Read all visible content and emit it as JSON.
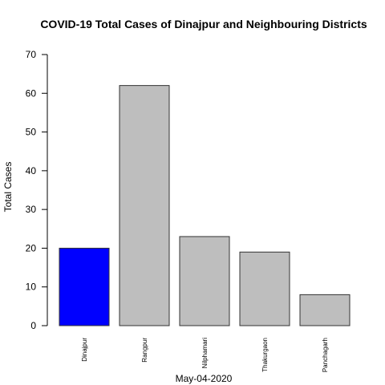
{
  "chart_data": {
    "type": "bar",
    "title": "COVID-19 Total Cases of Dinajpur and Neighbouring Districts",
    "xlabel": "May-04-2020",
    "ylabel": "Total Cases",
    "categories": [
      "Dinajpur",
      "Rangpur",
      "Nilphamari",
      "Thakurgaon",
      "Panchagarh"
    ],
    "values": [
      20,
      62,
      23,
      19,
      8
    ],
    "colors": [
      "#0000ff",
      "#bebebe",
      "#bebebe",
      "#bebebe",
      "#bebebe"
    ],
    "ylim": [
      0,
      70
    ],
    "yticks": [
      0,
      10,
      20,
      30,
      40,
      50,
      60,
      70
    ],
    "grid": false,
    "legend": "none"
  }
}
